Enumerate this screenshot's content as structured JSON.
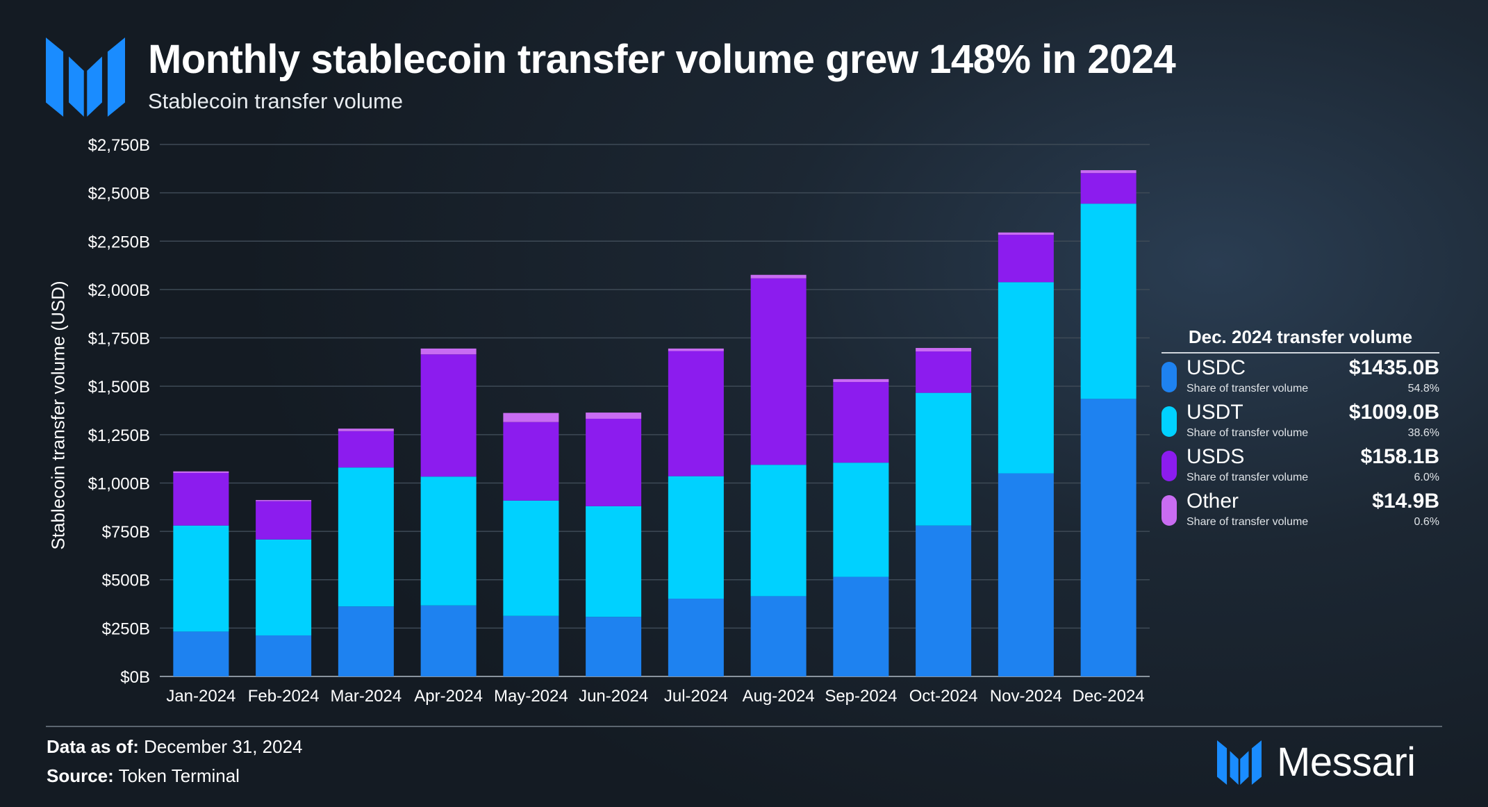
{
  "header": {
    "title": "Monthly stablecoin transfer volume grew 148% in 2024",
    "subtitle": "Stablecoin transfer volume"
  },
  "colors": {
    "USDC": "#1e82f0",
    "USDT": "#00d1ff",
    "USDS": "#8c1cee",
    "Other": "#c96cf2",
    "logo": "#1a8cff"
  },
  "chart_data": {
    "type": "bar",
    "stacked": true,
    "title": "Monthly stablecoin transfer volume grew 148% in 2024",
    "subtitle": "Stablecoin transfer volume",
    "xlabel": "",
    "ylabel": "Stablecoin transfer volume (USD)",
    "ylim": [
      0,
      2750
    ],
    "yticks": [
      0,
      250,
      500,
      750,
      1000,
      1250,
      1500,
      1750,
      2000,
      2250,
      2500,
      2750
    ],
    "ytick_labels": [
      "$0B",
      "$250B",
      "$500B",
      "$750B",
      "$1,000B",
      "$1,250B",
      "$1,500B",
      "$1,750B",
      "$2,000B",
      "$2,250B",
      "$2,500B",
      "$2,750B"
    ],
    "grid": true,
    "categories": [
      "Jan-2024",
      "Feb-2024",
      "Mar-2024",
      "Apr-2024",
      "May-2024",
      "Jun-2024",
      "Jul-2024",
      "Aug-2024",
      "Sep-2024",
      "Oct-2024",
      "Nov-2024",
      "Dec-2024"
    ],
    "series": [
      {
        "name": "USDC",
        "values": [
          232,
          212,
          362,
          367,
          313,
          308,
          402,
          415,
          515,
          780,
          1050,
          1435
        ]
      },
      {
        "name": "USDT",
        "values": [
          548,
          496,
          718,
          666,
          596,
          572,
          633,
          679,
          590,
          686,
          988,
          1009
        ]
      },
      {
        "name": "USDS",
        "values": [
          272,
          198,
          188,
          632,
          406,
          452,
          647,
          964,
          417,
          214,
          245,
          158.1
        ]
      },
      {
        "name": "Other",
        "values": [
          8,
          6,
          13,
          30,
          47,
          32,
          13,
          18,
          15,
          18,
          12,
          14.9
        ]
      }
    ]
  },
  "legend": {
    "title": "Dec. 2024 transfer volume",
    "share_label": "Share of transfer volume",
    "items": [
      {
        "name": "USDC",
        "value": "$1435.0B",
        "pct": "54.8%"
      },
      {
        "name": "USDT",
        "value": "$1009.0B",
        "pct": "38.6%"
      },
      {
        "name": "USDS",
        "value": "$158.1B",
        "pct": "6.0%"
      },
      {
        "name": "Other",
        "value": "$14.9B",
        "pct": "0.6%"
      }
    ]
  },
  "footer": {
    "data_label": "Data as of:",
    "data_value": "December 31, 2024",
    "source_label": "Source:",
    "source_value": "Token Terminal",
    "brand": "Messari"
  }
}
